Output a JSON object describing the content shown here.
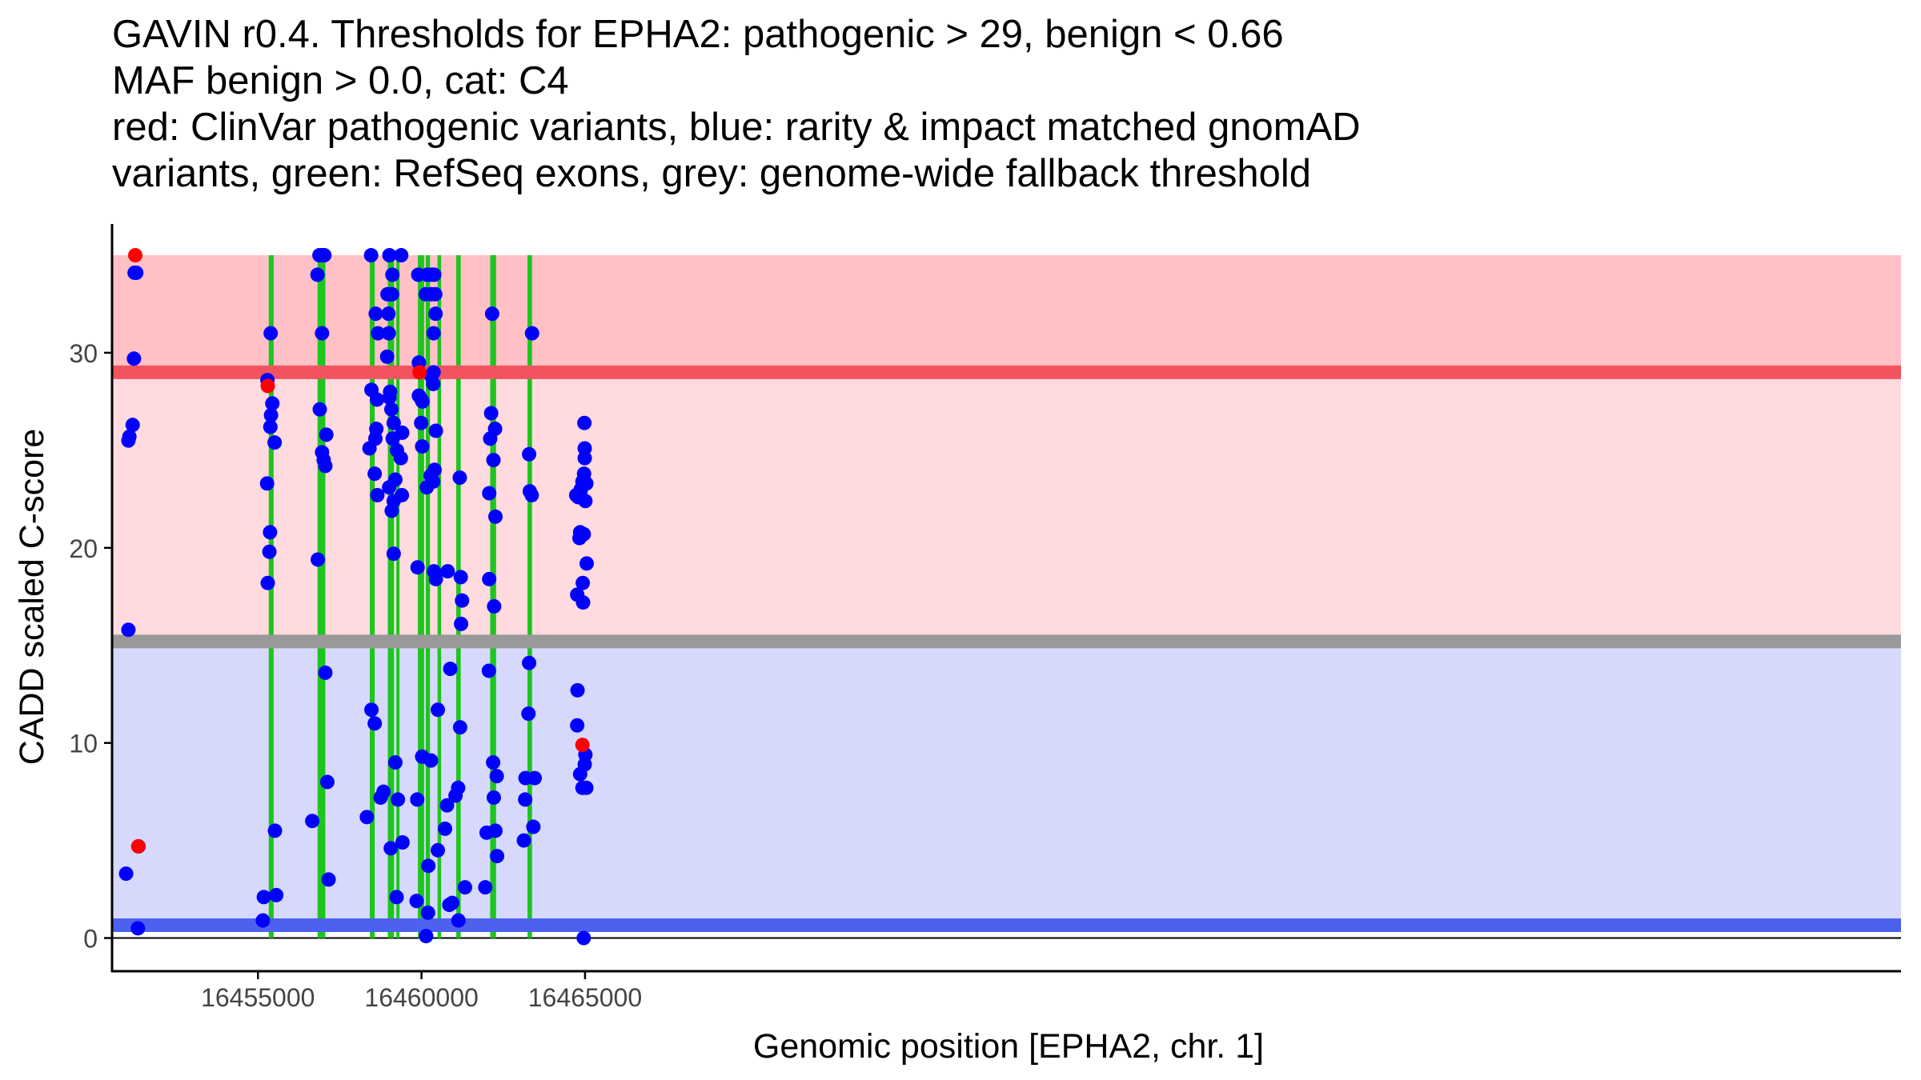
{
  "title_lines": [
    "GAVIN r0.4. Thresholds for EPHA2: pathogenic > 29, benign < 0.66",
    "MAF benign > 0.0, cat: C4",
    "red: ClinVar pathogenic variants, blue: rarity & impact matched gnomAD",
    "variants, green: RefSeq exons, grey: genome-wide fallback threshold"
  ],
  "chart_data": {
    "type": "scatter",
    "xlabel": "Genomic position [EPHA2, chr. 1]",
    "ylabel": "CADD scaled C-score",
    "xlim": [
      16450540,
      16505230
    ],
    "ylim": [
      -1.7,
      36.6
    ],
    "xticks": [
      16455000,
      16460000,
      16465000
    ],
    "xtick_labels": [
      "16455000",
      "16460000",
      "16465000"
    ],
    "yticks": [
      0,
      10,
      20,
      30
    ],
    "ytick_labels": [
      "0",
      "10",
      "20",
      "30"
    ],
    "grid": false,
    "colors": {
      "pathogenic_region": "#ffdadf",
      "pathogenic_region_upper": "#ffc0c6",
      "benign_region": "#d7d9fc",
      "pathogenic_threshold": "#f2545f",
      "benign_threshold": "#4c62ee",
      "fallback_threshold": "#999999",
      "exon": "#1ec51e",
      "gnomad": "#0000ff",
      "clinvar": "#ff0000"
    },
    "regions": [
      {
        "name": "pathogenic-upper",
        "y0": 29,
        "y1": 35
      },
      {
        "name": "pathogenic",
        "y0": 15.2,
        "y1": 29
      },
      {
        "name": "benign",
        "y0": 0.66,
        "y1": 15.2
      }
    ],
    "thresholds": {
      "pathogenic": 29,
      "fallback": 15.2,
      "benign": 0.66
    },
    "exons": [
      [
        16455330,
        16455480
      ],
      [
        16456822,
        16457060
      ],
      [
        16458420,
        16458570
      ],
      [
        16458970,
        16459160
      ],
      [
        16459230,
        16459290
      ],
      [
        16459890,
        16460080
      ],
      [
        16460130,
        16460260
      ],
      [
        16460490,
        16460600
      ],
      [
        16461060,
        16461200
      ],
      [
        16462100,
        16462280
      ],
      [
        16463240,
        16463380
      ]
    ],
    "series": [
      {
        "name": "rarity & impact matched gnomAD variants",
        "color": "#0000ff",
        "points": [
          [
            16451230,
            34.1
          ],
          [
            16451280,
            34.1
          ],
          [
            16451210,
            29.7
          ],
          [
            16451170,
            26.3
          ],
          [
            16451070,
            25.7
          ],
          [
            16451040,
            25.5
          ],
          [
            16451040,
            15.8
          ],
          [
            16450970,
            3.3
          ],
          [
            16451350,
            4.7
          ],
          [
            16451330,
            0.5
          ],
          [
            16455290,
            28.6
          ],
          [
            16455390,
            31.0
          ],
          [
            16455440,
            27.4
          ],
          [
            16455400,
            26.8
          ],
          [
            16455380,
            26.2
          ],
          [
            16455510,
            25.4
          ],
          [
            16455280,
            23.3
          ],
          [
            16455370,
            20.8
          ],
          [
            16455350,
            19.8
          ],
          [
            16455300,
            18.2
          ],
          [
            16455520,
            5.5
          ],
          [
            16455180,
            2.1
          ],
          [
            16455560,
            2.2
          ],
          [
            16455150,
            0.9
          ],
          [
            16456820,
            34.0
          ],
          [
            16456880,
            35.0
          ],
          [
            16456950,
            35.0
          ],
          [
            16457030,
            35.0
          ],
          [
            16456960,
            31.0
          ],
          [
            16456890,
            27.1
          ],
          [
            16457090,
            25.8
          ],
          [
            16456960,
            24.9
          ],
          [
            16457010,
            24.5
          ],
          [
            16457060,
            24.2
          ],
          [
            16456830,
            19.4
          ],
          [
            16457060,
            13.6
          ],
          [
            16456660,
            6.0
          ],
          [
            16457120,
            8.0
          ],
          [
            16457160,
            3.0
          ],
          [
            16458460,
            35.0
          ],
          [
            16458600,
            32.0
          ],
          [
            16458670,
            31.0
          ],
          [
            16458640,
            27.6
          ],
          [
            16458470,
            28.1
          ],
          [
            16458620,
            26.1
          ],
          [
            16458590,
            25.6
          ],
          [
            16458410,
            25.1
          ],
          [
            16458570,
            23.8
          ],
          [
            16458650,
            22.7
          ],
          [
            16458470,
            11.7
          ],
          [
            16458570,
            11.0
          ],
          [
            16458330,
            6.2
          ],
          [
            16458750,
            7.2
          ],
          [
            16459020,
            35.0
          ],
          [
            16459110,
            34.0
          ],
          [
            16458960,
            33.0
          ],
          [
            16459030,
            33.0
          ],
          [
            16459100,
            33.0
          ],
          [
            16458990,
            32.0
          ],
          [
            16459000,
            31.0
          ],
          [
            16458950,
            29.8
          ],
          [
            16459040,
            28.0
          ],
          [
            16459020,
            27.7
          ],
          [
            16459080,
            27.1
          ],
          [
            16459150,
            26.4
          ],
          [
            16459120,
            25.6
          ],
          [
            16459250,
            25.0
          ],
          [
            16459200,
            23.5
          ],
          [
            16459010,
            23.1
          ],
          [
            16459150,
            22.4
          ],
          [
            16459090,
            21.9
          ],
          [
            16459150,
            19.7
          ],
          [
            16459200,
            9.0
          ],
          [
            16458840,
            7.5
          ],
          [
            16459280,
            7.1
          ],
          [
            16459060,
            4.6
          ],
          [
            16459240,
            2.1
          ],
          [
            16459380,
            35.0
          ],
          [
            16459410,
            25.9
          ],
          [
            16459370,
            24.6
          ],
          [
            16459400,
            22.7
          ],
          [
            16459420,
            4.9
          ],
          [
            16459900,
            34.0
          ],
          [
            16460170,
            34.0
          ],
          [
            16459920,
            29.5
          ],
          [
            16459920,
            27.8
          ],
          [
            16460000,
            27.6
          ],
          [
            16460030,
            27.5
          ],
          [
            16459990,
            26.4
          ],
          [
            16460020,
            25.2
          ],
          [
            16460160,
            23.1
          ],
          [
            16459880,
            19.0
          ],
          [
            16460020,
            9.3
          ],
          [
            16459870,
            7.1
          ],
          [
            16459850,
            1.9
          ],
          [
            16460130,
            33.0
          ],
          [
            16460140,
            0.1
          ],
          [
            16460300,
            34.0
          ],
          [
            16460390,
            34.0
          ],
          [
            16460290,
            33.0
          ],
          [
            16460420,
            33.0
          ],
          [
            16460430,
            32.0
          ],
          [
            16460370,
            31.0
          ],
          [
            16460370,
            29.0
          ],
          [
            16460300,
            28.8
          ],
          [
            16460360,
            28.4
          ],
          [
            16460440,
            26.0
          ],
          [
            16460400,
            24.0
          ],
          [
            16460280,
            23.7
          ],
          [
            16460360,
            23.4
          ],
          [
            16460380,
            18.8
          ],
          [
            16460440,
            18.4
          ],
          [
            16460290,
            9.1
          ],
          [
            16460210,
            3.7
          ],
          [
            16460200,
            1.3
          ],
          [
            16460500,
            11.7
          ],
          [
            16460500,
            4.5
          ],
          [
            16460800,
            18.8
          ],
          [
            16460880,
            13.8
          ],
          [
            16460780,
            6.8
          ],
          [
            16460720,
            5.6
          ],
          [
            16460850,
            1.7
          ],
          [
            16460940,
            1.8
          ],
          [
            16461170,
            23.6
          ],
          [
            16461200,
            18.5
          ],
          [
            16461240,
            17.3
          ],
          [
            16461210,
            16.1
          ],
          [
            16461180,
            10.8
          ],
          [
            16461120,
            7.7
          ],
          [
            16461040,
            7.3
          ],
          [
            16461330,
            2.6
          ],
          [
            16461130,
            0.9
          ],
          [
            16462160,
            32.0
          ],
          [
            16462130,
            26.9
          ],
          [
            16462250,
            26.1
          ],
          [
            16462100,
            25.6
          ],
          [
            16462200,
            24.5
          ],
          [
            16462070,
            22.8
          ],
          [
            16462260,
            21.6
          ],
          [
            16462070,
            18.4
          ],
          [
            16462220,
            17.0
          ],
          [
            16462060,
            13.7
          ],
          [
            16462190,
            9.0
          ],
          [
            16462300,
            8.3
          ],
          [
            16462210,
            7.2
          ],
          [
            16462260,
            5.5
          ],
          [
            16461990,
            5.4
          ],
          [
            16462310,
            4.2
          ],
          [
            16461950,
            2.6
          ],
          [
            16463380,
            31.0
          ],
          [
            16463290,
            24.8
          ],
          [
            16463310,
            22.9
          ],
          [
            16463370,
            22.7
          ],
          [
            16463290,
            14.1
          ],
          [
            16463270,
            11.5
          ],
          [
            16463180,
            8.2
          ],
          [
            16463460,
            8.2
          ],
          [
            16463170,
            7.1
          ],
          [
            16463420,
            5.7
          ],
          [
            16463130,
            5.0
          ],
          [
            16464730,
            22.7
          ],
          [
            16464790,
            22.6
          ],
          [
            16464860,
            22.9
          ],
          [
            16464920,
            23.4
          ],
          [
            16464970,
            23.8
          ],
          [
            16464990,
            25.1
          ],
          [
            16464980,
            26.4
          ],
          [
            16465040,
            23.3
          ],
          [
            16464870,
            23.0
          ],
          [
            16464990,
            24.6
          ],
          [
            16465010,
            22.4
          ],
          [
            16464850,
            20.8
          ],
          [
            16464830,
            20.5
          ],
          [
            16464960,
            20.7
          ],
          [
            16464880,
            20.6
          ],
          [
            16464930,
            18.2
          ],
          [
            16464760,
            17.6
          ],
          [
            16464940,
            17.2
          ],
          [
            16465050,
            19.2
          ],
          [
            16464770,
            12.7
          ],
          [
            16464760,
            10.9
          ],
          [
            16464850,
            8.4
          ],
          [
            16465010,
            9.4
          ],
          [
            16464990,
            8.9
          ],
          [
            16464920,
            7.7
          ],
          [
            16465040,
            7.7
          ],
          [
            16464960,
            0.0
          ]
        ]
      },
      {
        "name": "ClinVar pathogenic variants",
        "color": "#ff0000",
        "points": [
          [
            16451250,
            35.0
          ],
          [
            16451340,
            4.7
          ],
          [
            16455300,
            28.3
          ],
          [
            16459940,
            29.0
          ],
          [
            16464920,
            9.9
          ]
        ]
      }
    ]
  }
}
